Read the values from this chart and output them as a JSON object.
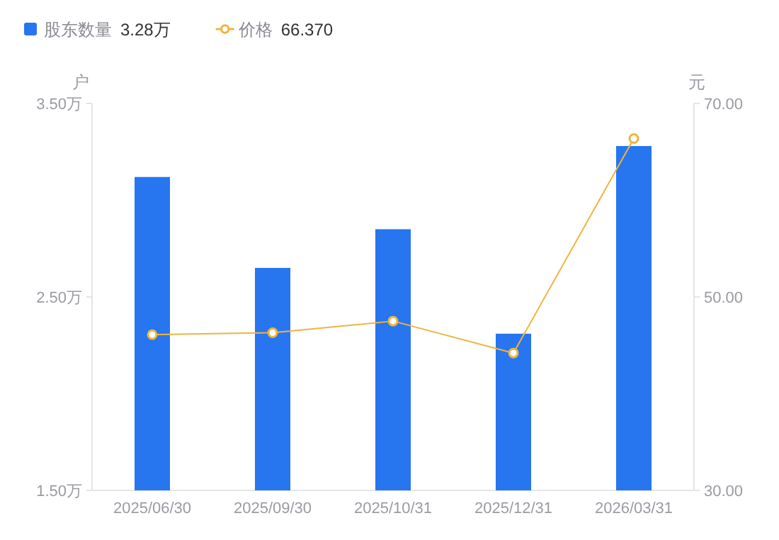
{
  "chart_data": {
    "type": "bar",
    "categories": [
      "2025/06/30",
      "2025/09/30",
      "2025/10/31",
      "2025/12/31",
      "2026/03/31"
    ],
    "ylabel": "户",
    "y2label": "元",
    "series": [
      {
        "name": "股东数量",
        "color": "#2776f0",
        "values": [
          3.12,
          2.65,
          2.85,
          2.31,
          3.28
        ]
      },
      {
        "name": "价格",
        "type": "line",
        "axis": "y2",
        "color": "#f0b43c",
        "marker": "circle",
        "values": [
          46.1,
          46.3,
          47.5,
          44.2,
          66.37
        ]
      }
    ],
    "ylim": [
      1.5,
      3.5
    ],
    "yticks": [
      {
        "value": 1.5,
        "label": "1.50万"
      },
      {
        "value": 2.5,
        "label": "2.50万"
      },
      {
        "value": 3.5,
        "label": "3.50万"
      }
    ],
    "y2lim": [
      30,
      70
    ],
    "y2ticks": [
      {
        "value": 30,
        "label": "30.00"
      },
      {
        "value": 50,
        "label": "50.00"
      },
      {
        "value": 70,
        "label": "70.00"
      }
    ],
    "annotations": [
      "3.28万",
      "66.370"
    ],
    "legend": "top left"
  }
}
